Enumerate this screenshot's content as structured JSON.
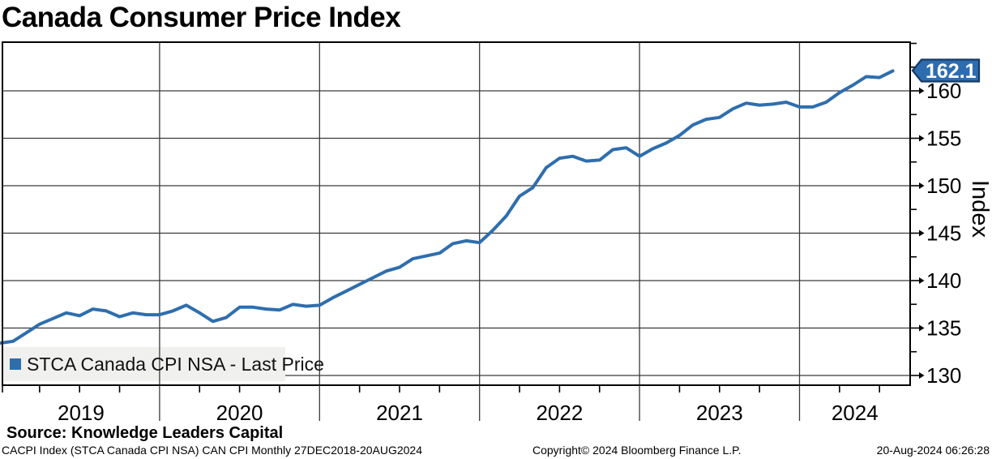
{
  "title": "Canada Consumer Price Index",
  "legend": {
    "label": "STCA Canada CPI NSA - Last Price"
  },
  "last_price_tag": "162.1",
  "y_axis_title": "Index",
  "source_line": "Source: Knowledge Leaders Capital",
  "footer": {
    "left": "CACPI Index (STCA Canada CPI NSA) CAN CPI  Monthly 27DEC2018-20AUG2024",
    "center": "Copyright© 2024 Bloomberg Finance L.P.",
    "right": "20-Aug-2024 06:26:28"
  },
  "colors": {
    "line": "#2f6ead",
    "tag_fill": "#2e6cb0",
    "tag_border": "#163a63",
    "legend_bg": "#f0f0ee",
    "grid": "#3a3a3a",
    "frame": "#000000",
    "tag_text": "#ffffff"
  },
  "chart_data": {
    "type": "line",
    "title": "Canada Consumer Price Index",
    "series_name": "STCA Canada CPI NSA - Last Price",
    "frequency": "monthly",
    "x_start": "2018-12",
    "x_end": "2024-07",
    "last_price": 162.1,
    "ylabel": "Index",
    "ylim": [
      129.3,
      165.1
    ],
    "y_ticks": [
      130,
      135,
      140,
      145,
      150,
      155,
      160
    ],
    "y_minor_ticks": [
      132.5,
      137.5,
      142.5,
      147.5,
      152.5,
      157.5,
      162.5,
      165
    ],
    "year_labels": [
      "2019",
      "2020",
      "2021",
      "2022",
      "2023",
      "2024"
    ],
    "grid": true,
    "legend_position": "bottom-left",
    "values": [
      133.4,
      133.6,
      134.5,
      135.4,
      136.0,
      136.6,
      136.3,
      137.0,
      136.8,
      136.2,
      136.6,
      136.4,
      136.4,
      136.8,
      137.4,
      136.6,
      135.7,
      136.1,
      137.2,
      137.2,
      137.0,
      136.9,
      137.5,
      137.3,
      137.4,
      138.2,
      138.9,
      139.6,
      140.3,
      141.0,
      141.4,
      142.3,
      142.6,
      142.9,
      143.9,
      144.2,
      144.0,
      145.3,
      146.8,
      148.9,
      149.8,
      151.9,
      152.9,
      153.1,
      152.6,
      152.7,
      153.8,
      154.0,
      153.1,
      153.9,
      154.5,
      155.3,
      156.4,
      157.0,
      157.2,
      158.1,
      158.7,
      158.5,
      158.6,
      158.8,
      158.3,
      158.3,
      158.8,
      159.8,
      160.6,
      161.5,
      161.4,
      162.1
    ]
  }
}
